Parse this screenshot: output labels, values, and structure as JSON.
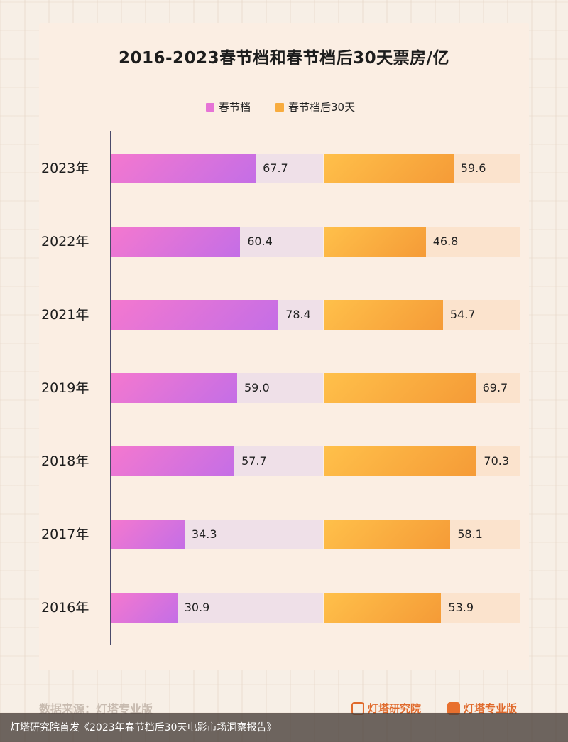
{
  "chart_data": {
    "type": "bar",
    "title": "2016-2023春节档和春节档后30天票房/亿",
    "categories": [
      "2023年",
      "2022年",
      "2021年",
      "2019年",
      "2018年",
      "2017年",
      "2016年"
    ],
    "series": [
      {
        "name": "春节档",
        "values": [
          67.7,
          60.4,
          78.4,
          59.0,
          57.7,
          34.3,
          30.9
        ],
        "labels": [
          "67.7",
          "60.4",
          "78.4",
          "59.0",
          "57.7",
          "34.3",
          "30.9"
        ],
        "color": "#e673d6"
      },
      {
        "name": "春节档后30天",
        "values": [
          59.6,
          46.8,
          54.7,
          69.7,
          70.3,
          58.1,
          53.9
        ],
        "labels": [
          "59.6",
          "46.8",
          "54.7",
          "69.7",
          "70.3",
          "58.1",
          "53.9"
        ],
        "color": "#f8ac3f"
      }
    ],
    "orientation": "horizontal",
    "legend": "top-center",
    "reference_line": "2023年 values (dashed)"
  },
  "footer": {
    "source": "数据来源：灯塔专业版",
    "brand_research": "灯塔研究院",
    "brand_pro": "灯塔专业版"
  },
  "caption": "灯塔研究院首发《2023年春节档后30天电影市场洞察报告》",
  "colors": {
    "background": "#f7efe6",
    "card": "#fbeee3",
    "accent": "#e06a2c"
  }
}
